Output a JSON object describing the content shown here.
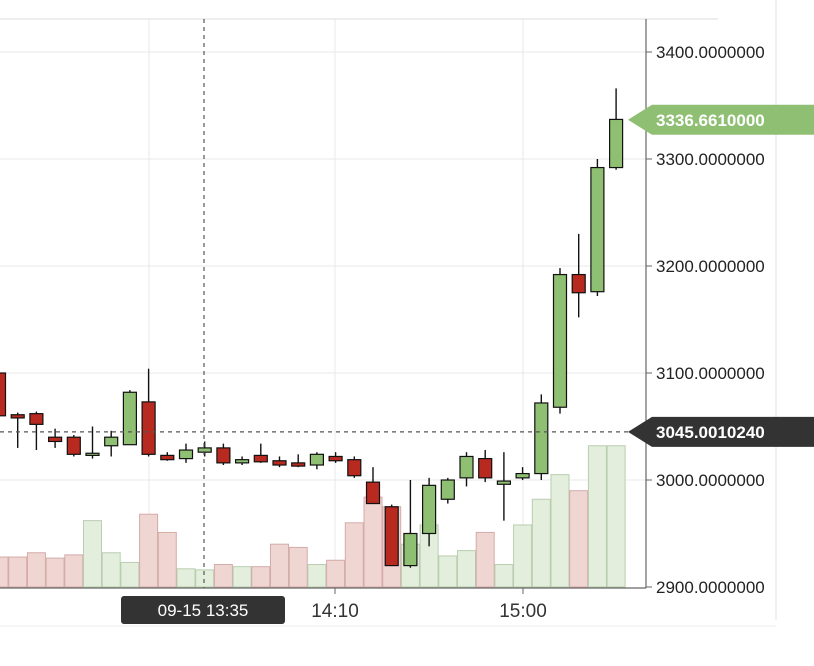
{
  "chart_data": {
    "type": "candlestick",
    "x_ticks": [
      "14:10",
      "15:00"
    ],
    "y_ticks": [
      "3400.0000000",
      "3300.0000000",
      "3200.0000000",
      "3100.0000000",
      "3000.0000000",
      "2900.0000000"
    ],
    "ylim": [
      2900,
      3400
    ],
    "current_price_label": "3336.6610000",
    "crosshair_price_label": "3045.0010240",
    "crosshair_time_label": "09-15 13:35",
    "grid": true,
    "colors": {
      "up_fill": "#8fbf73",
      "down_fill": "#b8291f",
      "up_volume": "#e3efdc",
      "down_volume": "#efd6d3",
      "volume_border_up": "#b9cdb0",
      "volume_border_down": "#d4aba7",
      "current_tag": "#8fbf73",
      "crosshair_tag": "#333333",
      "grid": "#e8e8e8"
    },
    "candles": [
      {
        "o": 3100,
        "h": 3102,
        "l": 3060,
        "c": 3060,
        "v": 2928
      },
      {
        "o": 3061,
        "h": 3063,
        "l": 3030,
        "c": 3058,
        "v": 2928
      },
      {
        "o": 3062,
        "h": 3064,
        "l": 3028,
        "c": 3052,
        "v": 2932
      },
      {
        "o": 3040,
        "h": 3048,
        "l": 3030,
        "c": 3036,
        "v": 2927
      },
      {
        "o": 3040,
        "h": 3042,
        "l": 3022,
        "c": 3024,
        "v": 2930
      },
      {
        "o": 3023,
        "h": 3050,
        "l": 3020,
        "c": 3025,
        "v": 2962
      },
      {
        "o": 3032,
        "h": 3046,
        "l": 3022,
        "c": 3040,
        "v": 2932
      },
      {
        "o": 3033,
        "h": 3084,
        "l": 3033,
        "c": 3082,
        "v": 2923
      },
      {
        "o": 3073,
        "h": 3104,
        "l": 3022,
        "c": 3024,
        "v": 2968
      },
      {
        "o": 3023,
        "h": 3026,
        "l": 3018,
        "c": 3019,
        "v": 2951
      },
      {
        "o": 3020,
        "h": 3034,
        "l": 3016,
        "c": 3028,
        "v": 2917
      },
      {
        "o": 3026,
        "h": 3036,
        "l": 3022,
        "c": 3030,
        "v": 2916
      },
      {
        "o": 3030,
        "h": 3034,
        "l": 3014,
        "c": 3016,
        "v": 2921
      },
      {
        "o": 3016,
        "h": 3022,
        "l": 3014,
        "c": 3019,
        "v": 2919
      },
      {
        "o": 3023,
        "h": 3034,
        "l": 3016,
        "c": 3017,
        "v": 2919
      },
      {
        "o": 3018,
        "h": 3022,
        "l": 3012,
        "c": 3014,
        "v": 2940
      },
      {
        "o": 3016,
        "h": 3024,
        "l": 3012,
        "c": 3013,
        "v": 2937
      },
      {
        "o": 3014,
        "h": 3026,
        "l": 3010,
        "c": 3024,
        "v": 2921
      },
      {
        "o": 3022,
        "h": 3026,
        "l": 3016,
        "c": 3018,
        "v": 2925
      },
      {
        "o": 3019,
        "h": 3022,
        "l": 3002,
        "c": 3004,
        "v": 2960
      },
      {
        "o": 2998,
        "h": 3012,
        "l": 2978,
        "c": 2978,
        "v": 2984
      },
      {
        "o": 2975,
        "h": 2977,
        "l": 2920,
        "c": 2920,
        "v": 2975
      },
      {
        "o": 2920,
        "h": 3000,
        "l": 2918,
        "c": 2950,
        "v": 2940
      },
      {
        "o": 2950,
        "h": 3002,
        "l": 2938,
        "c": 2995,
        "v": 2958
      },
      {
        "o": 2982,
        "h": 3002,
        "l": 2978,
        "c": 3000,
        "v": 2929
      },
      {
        "o": 3002,
        "h": 3026,
        "l": 2994,
        "c": 3022,
        "v": 2934
      },
      {
        "o": 3020,
        "h": 3028,
        "l": 2998,
        "c": 3002,
        "v": 2951
      },
      {
        "o": 2996,
        "h": 3026,
        "l": 2962,
        "c": 2999,
        "v": 2921
      },
      {
        "o": 3002,
        "h": 3012,
        "l": 3000,
        "c": 3006,
        "v": 2958
      },
      {
        "o": 3006,
        "h": 3080,
        "l": 3000,
        "c": 3072,
        "v": 2982
      },
      {
        "o": 3068,
        "h": 3198,
        "l": 3062,
        "c": 3192,
        "v": 3005
      },
      {
        "o": 3192,
        "h": 3230,
        "l": 3152,
        "c": 3175,
        "v": 2990
      },
      {
        "o": 3176,
        "h": 3300,
        "l": 3172,
        "c": 3292,
        "v": 3032
      },
      {
        "o": 3292,
        "h": 3366,
        "l": 3290,
        "c": 3337,
        "v": 3032
      }
    ]
  }
}
